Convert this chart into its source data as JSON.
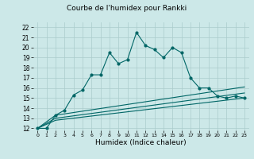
{
  "title": "Courbe de l'humidex pour Rankki",
  "xlabel": "Humidex (Indice chaleur)",
  "bg_color": "#cce8e8",
  "grid_color": "#aacccc",
  "line_color": "#006666",
  "xlim": [
    -0.5,
    23.5
  ],
  "ylim": [
    11.8,
    22.5
  ],
  "yticks": [
    12,
    13,
    14,
    15,
    16,
    17,
    18,
    19,
    20,
    21,
    22
  ],
  "xticks": [
    0,
    1,
    2,
    3,
    4,
    5,
    6,
    7,
    8,
    9,
    10,
    11,
    12,
    13,
    14,
    15,
    16,
    17,
    18,
    19,
    20,
    21,
    22,
    23
  ],
  "series1_x": [
    0,
    1,
    2,
    3,
    4,
    5,
    6,
    7,
    8,
    9,
    10,
    11,
    12,
    13,
    14,
    15,
    16,
    17,
    18,
    19,
    20,
    21,
    22,
    23
  ],
  "series1_y": [
    12,
    12,
    13.3,
    13.8,
    15.3,
    15.8,
    17.3,
    17.3,
    19.5,
    18.4,
    18.8,
    21.5,
    20.2,
    19.8,
    19.0,
    20.0,
    19.5,
    17.0,
    16.0,
    16.0,
    15.2,
    15.0,
    15.2,
    15.0
  ],
  "series2_x": [
    0,
    2,
    23
  ],
  "series2_y": [
    12.0,
    13.3,
    16.1
  ],
  "series3_x": [
    0,
    2,
    23
  ],
  "series3_y": [
    12.0,
    13.0,
    15.5
  ],
  "series4_x": [
    0,
    2,
    23
  ],
  "series4_y": [
    12.0,
    12.8,
    15.0
  ]
}
